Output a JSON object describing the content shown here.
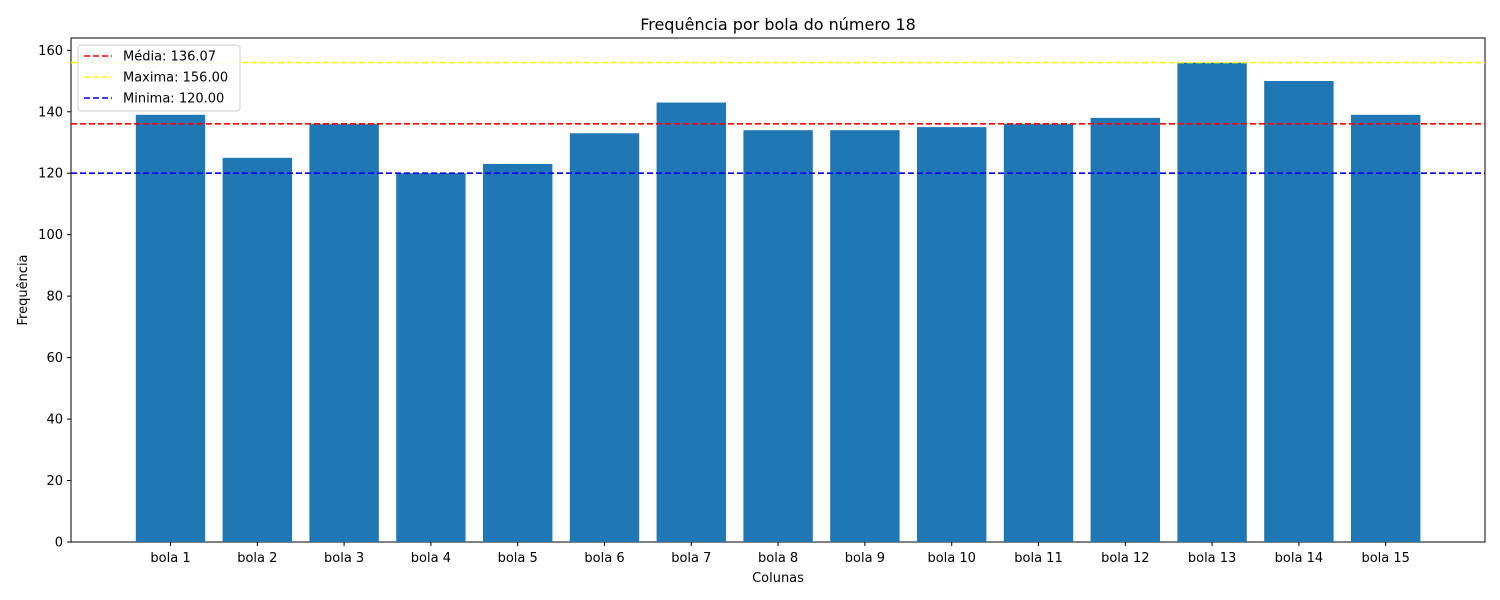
{
  "chart_data": {
    "type": "bar",
    "title": "Frequência por bola do número 18",
    "xlabel": "Colunas",
    "ylabel": "Frequência",
    "categories": [
      "bola 1",
      "bola 2",
      "bola 3",
      "bola 4",
      "bola 5",
      "bola 6",
      "bola 7",
      "bola 8",
      "bola 9",
      "bola 10",
      "bola 11",
      "bola 12",
      "bola 13",
      "bola 14",
      "bola 15"
    ],
    "values": [
      139,
      125,
      136,
      120,
      123,
      133,
      143,
      134,
      134,
      135,
      136,
      138,
      156,
      150,
      139
    ],
    "bar_color": "#1f77b4",
    "ylim": [
      0,
      164
    ],
    "yticks": [
      0,
      20,
      40,
      60,
      80,
      100,
      120,
      140,
      160
    ],
    "grid": false,
    "legend_position": "top-left",
    "reference_lines": [
      {
        "label": "Média: 136.07",
        "value": 136.07,
        "color": "#ff0000"
      },
      {
        "label": "Maxima: 156.00",
        "value": 156.0,
        "color": "#ffff00"
      },
      {
        "label": "Minima: 120.00",
        "value": 120.0,
        "color": "#0000ff"
      }
    ]
  }
}
